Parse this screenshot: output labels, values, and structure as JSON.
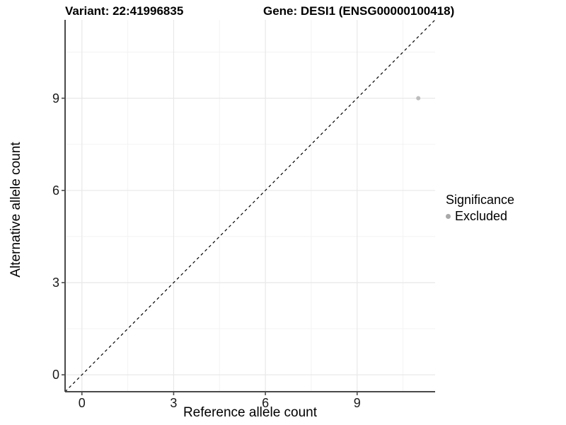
{
  "chart_data": {
    "type": "scatter",
    "title_left": "Variant: 22:41996835",
    "title_right": "Gene: DESI1 (ENSG00000100418)",
    "xlabel": "Reference allele count",
    "ylabel": "Alternative allele count",
    "xlim": [
      -0.55,
      11.55
    ],
    "ylim": [
      -0.55,
      11.55
    ],
    "x_major_ticks": [
      0,
      3,
      6,
      9
    ],
    "y_major_ticks": [
      0,
      3,
      6,
      9
    ],
    "x_minor_ticks": [
      1.5,
      4.5,
      7.5,
      10.5
    ],
    "y_minor_ticks": [
      1.5,
      4.5,
      7.5,
      10.5
    ],
    "grid": true,
    "identity_line": {
      "type": "dashed",
      "x1": -0.55,
      "y1": -0.55,
      "x2": 11.55,
      "y2": 11.55,
      "color": "#000000"
    },
    "points": [
      {
        "x": 11,
        "y": 9,
        "series": "Excluded",
        "color": "#bdbdbd"
      }
    ],
    "legend": {
      "position": "right",
      "title": "Significance",
      "items": [
        {
          "label": "Excluded",
          "color": "#a9a9a9"
        }
      ]
    },
    "style": {
      "grid_major_color": "#e8e8e8",
      "grid_minor_color": "#f3f3f3",
      "axis_color": "#4a4a4a",
      "text_color": "#000000",
      "point_color": "#bdbdbd"
    }
  }
}
